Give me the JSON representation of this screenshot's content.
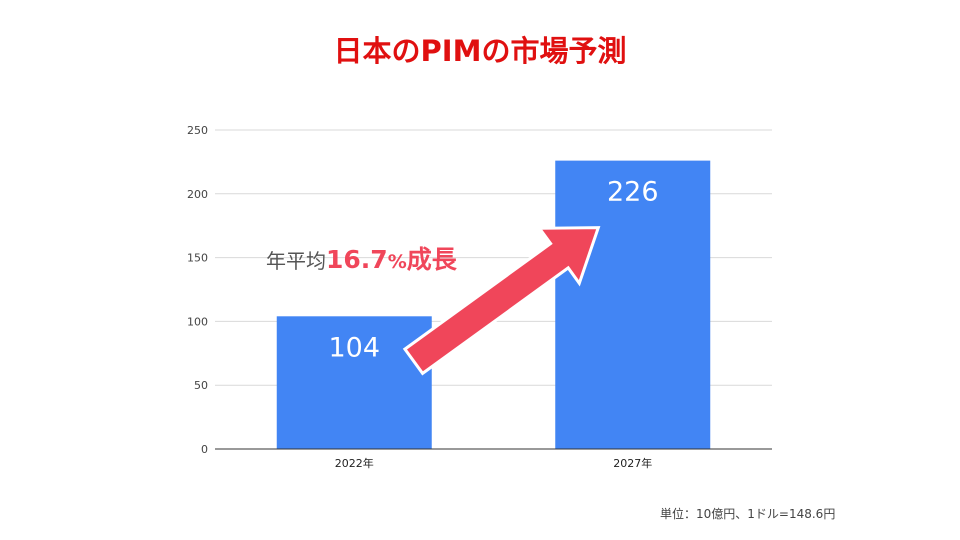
{
  "title": "日本のPIMの市場予測",
  "growth_label": {
    "prefix": "年平均",
    "rate": "16.7",
    "suffix_unit": "%",
    "suffix_text": "成長"
  },
  "footnote": "単位：10億円、1ドル=148.6円",
  "colors": {
    "bar": "#4285f4",
    "title": "#e01010",
    "arrow": "#f0465a",
    "grid": "#d9d9d9"
  },
  "chart_data": {
    "type": "bar",
    "categories": [
      "2022年",
      "2027年"
    ],
    "values": [
      104,
      226
    ],
    "data_labels": [
      "104",
      "226"
    ],
    "yticks": [
      "0",
      "50",
      "100",
      "150",
      "200",
      "250"
    ],
    "ylim": [
      0,
      250
    ],
    "grid": true,
    "xlabel": "",
    "ylabel": ""
  }
}
